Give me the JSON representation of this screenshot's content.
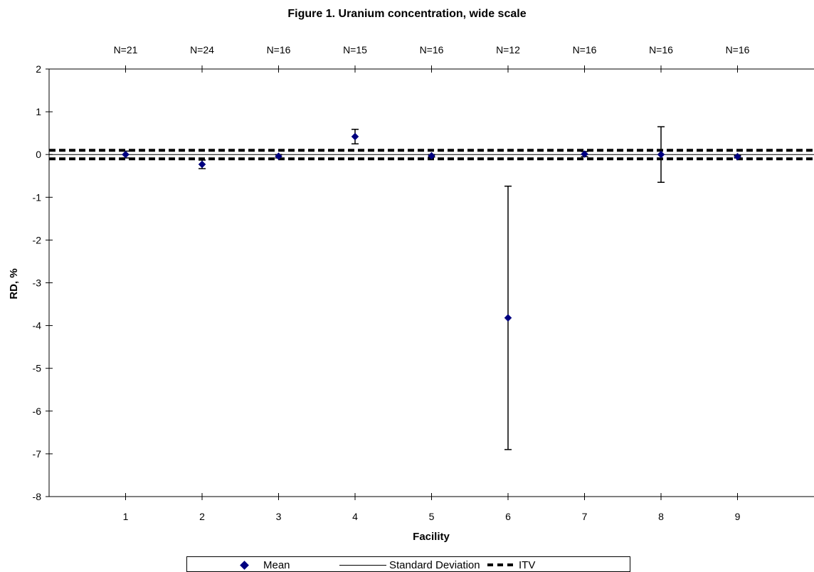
{
  "chart_data": {
    "type": "scatter",
    "title": "Figure 1.  Uranium concentration, wide scale",
    "xlabel": "Facility",
    "ylabel": "RD, %",
    "xlim": [
      0,
      10
    ],
    "ylim": [
      -8,
      2
    ],
    "x_ticks": [
      1,
      2,
      3,
      4,
      5,
      6,
      7,
      8,
      9
    ],
    "y_ticks": [
      2,
      1,
      0,
      -1,
      -2,
      -3,
      -4,
      -5,
      -6,
      -7,
      -8
    ],
    "grid": false,
    "legend_position": "bottom",
    "top_labels": [
      "N=21",
      "N=24",
      "N=16",
      "N=15",
      "N=16",
      "N=12",
      "N=16",
      "N=16",
      "N=16"
    ],
    "series": [
      {
        "name": "Mean",
        "x": [
          1,
          2,
          3,
          4,
          5,
          6,
          7,
          8,
          9
        ],
        "y": [
          0.0,
          -0.23,
          -0.04,
          0.42,
          -0.03,
          -3.82,
          0.01,
          0.0,
          -0.05
        ],
        "error": [
          0.08,
          0.1,
          0.04,
          0.17,
          0.03,
          3.08,
          0.06,
          0.65,
          0.03
        ],
        "color": "#000080",
        "marker": "diamond"
      }
    ],
    "reference_lines": [
      {
        "name": "Standard Deviation",
        "style": "solid",
        "y": 0
      },
      {
        "name": "ITV",
        "style": "dashed",
        "y": [
          0.1,
          -0.1
        ]
      }
    ]
  },
  "legend": {
    "items": [
      {
        "label": "Mean",
        "icon": "diamond-marker"
      },
      {
        "label": "Standard Deviation",
        "icon": "solid-line"
      },
      {
        "label": "ITV",
        "icon": "dashed-line"
      }
    ]
  }
}
